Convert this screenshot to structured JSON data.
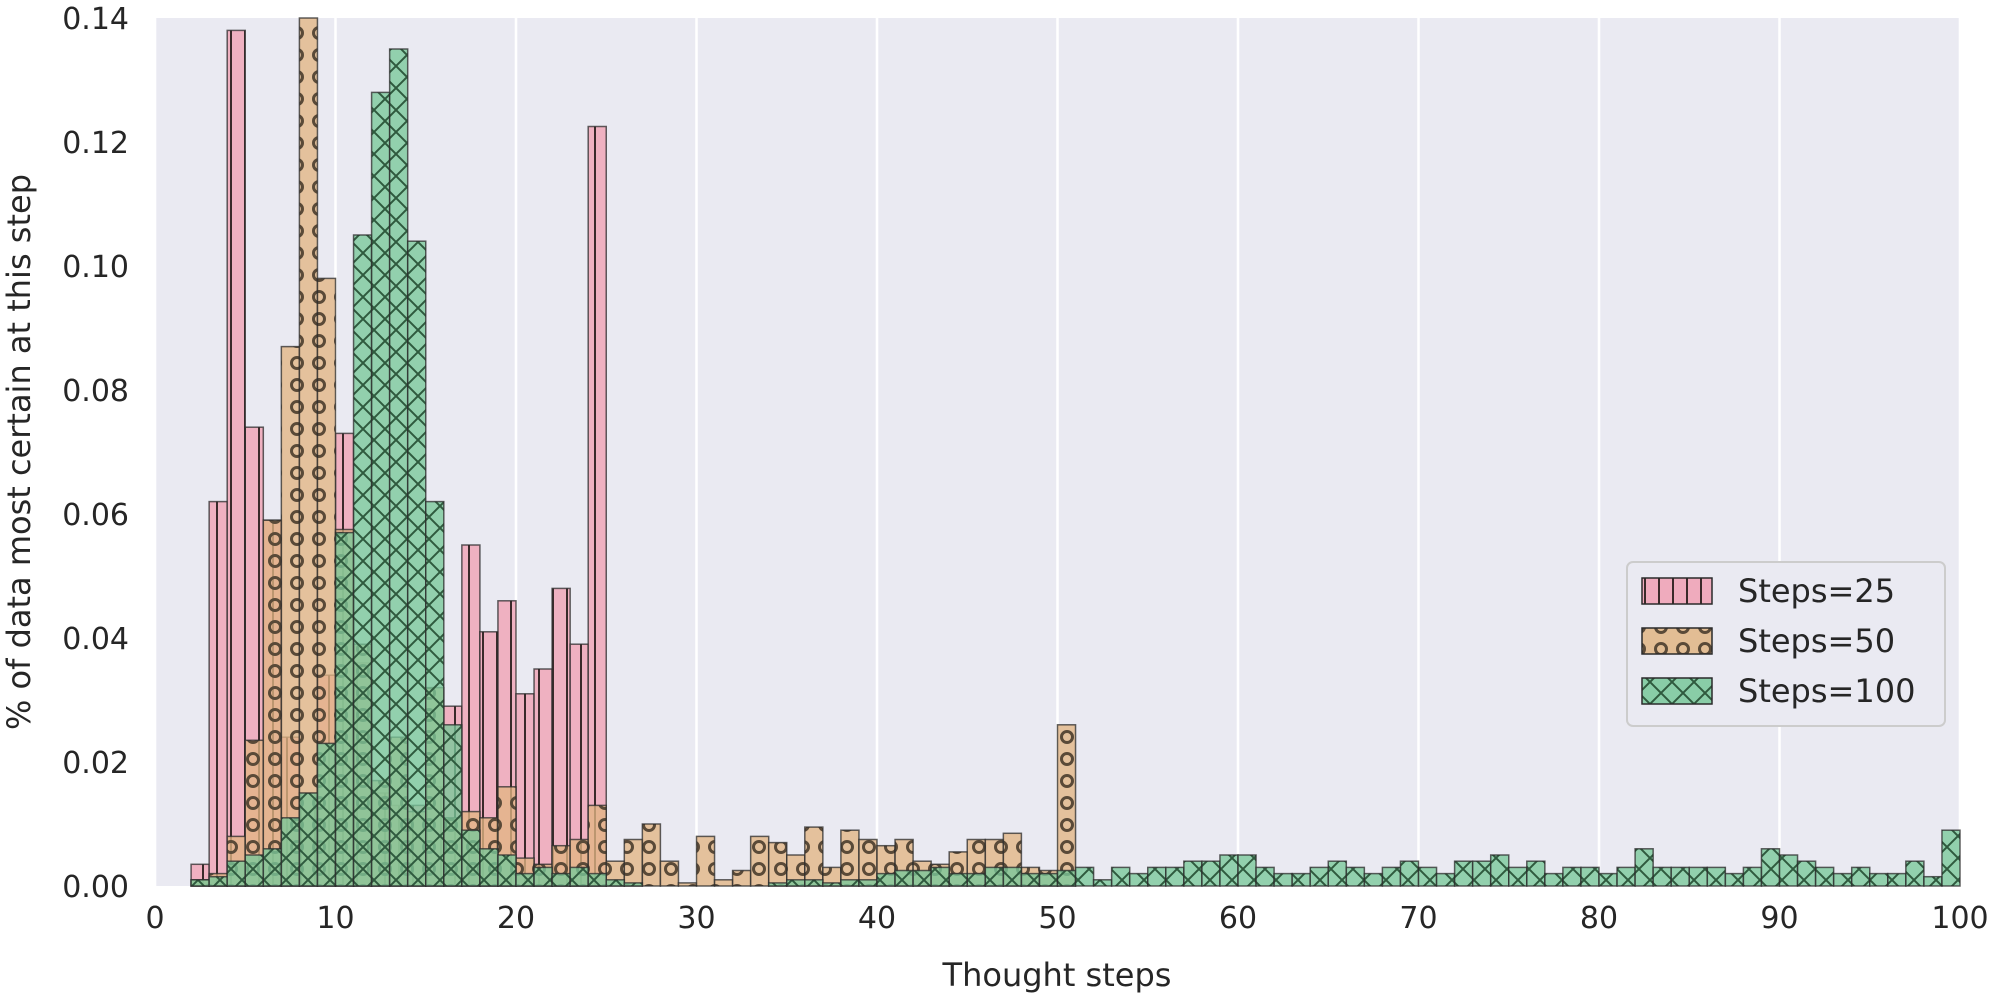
{
  "chart_data": {
    "type": "bar",
    "xlabel": "Thought steps",
    "ylabel": "% of data most certain at this step",
    "xlim": [
      0,
      100
    ],
    "ylim": [
      0,
      0.14
    ],
    "xticks": [
      "0",
      "10",
      "20",
      "30",
      "40",
      "50",
      "60",
      "70",
      "80",
      "90",
      "100"
    ],
    "yticks": [
      "0.00",
      "0.02",
      "0.04",
      "0.06",
      "0.08",
      "0.10",
      "0.12",
      "0.14"
    ],
    "grid": true,
    "legend_position": "center-right",
    "background": "#eaeaf2",
    "series": [
      {
        "name": "Steps=25",
        "color": "#f0a0b4",
        "hatch": "vertical",
        "bin_width": 1,
        "x": [
          2,
          3,
          4,
          5,
          6,
          7,
          8,
          9,
          10,
          11,
          12,
          13,
          14,
          15,
          16,
          17,
          18,
          19,
          20,
          21,
          22,
          23,
          24,
          25
        ],
        "values": [
          0.0035,
          0.062,
          0.138,
          0.074,
          0.059,
          0.024,
          0.015,
          0.034,
          0.073,
          0.036,
          0.015,
          0.013,
          0.013,
          0.016,
          0.029,
          0.055,
          0.041,
          0.046,
          0.031,
          0.035,
          0.048,
          0.039,
          0.1225,
          0
        ]
      },
      {
        "name": "Steps=50",
        "color": "#e1b584",
        "hatch": "circles",
        "bin_width": 1,
        "x": [
          2,
          3,
          4,
          5,
          6,
          7,
          8,
          9,
          10,
          11,
          12,
          13,
          14,
          15,
          16,
          17,
          18,
          19,
          20,
          21,
          22,
          23,
          24,
          25,
          26,
          27,
          28,
          29,
          30,
          31,
          32,
          33,
          34,
          35,
          36,
          37,
          38,
          39,
          40,
          41,
          42,
          43,
          44,
          45,
          46,
          47,
          48,
          49,
          50
        ],
        "values": [
          0.001,
          0.002,
          0.008,
          0.0235,
          0.059,
          0.087,
          0.14,
          0.098,
          0.0575,
          0.039,
          0.017,
          0.024,
          0.012,
          0.032,
          0.011,
          0.012,
          0.011,
          0.016,
          0.0045,
          0.0035,
          0.0065,
          0.0075,
          0.013,
          0.004,
          0.0075,
          0.01,
          0.004,
          0.0005,
          0.008,
          0.001,
          0.0025,
          0.008,
          0.007,
          0.005,
          0.0095,
          0.003,
          0.009,
          0.0075,
          0.0065,
          0.0075,
          0.004,
          0.0035,
          0.0055,
          0.0075,
          0.0075,
          0.0085,
          0.003,
          0.0025,
          0.026
        ]
      },
      {
        "name": "Steps=100",
        "color": "#78c89a",
        "hatch": "cross",
        "bin_width": 1,
        "x": [
          2,
          3,
          4,
          5,
          6,
          7,
          8,
          9,
          10,
          11,
          12,
          13,
          14,
          15,
          16,
          17,
          18,
          19,
          20,
          21,
          22,
          23,
          24,
          25,
          26,
          27,
          28,
          29,
          30,
          31,
          32,
          33,
          34,
          35,
          36,
          37,
          38,
          39,
          40,
          41,
          42,
          43,
          44,
          45,
          46,
          47,
          48,
          49,
          50,
          51,
          52,
          53,
          54,
          55,
          56,
          57,
          58,
          59,
          60,
          61,
          62,
          63,
          64,
          65,
          66,
          67,
          68,
          69,
          70,
          71,
          72,
          73,
          74,
          75,
          76,
          77,
          78,
          79,
          80,
          81,
          82,
          83,
          84,
          85,
          86,
          87,
          88,
          89,
          90,
          91,
          92,
          93,
          94,
          95,
          96,
          97,
          98,
          99
        ],
        "values": [
          0.001,
          0.0015,
          0.004,
          0.005,
          0.006,
          0.011,
          0.015,
          0.023,
          0.057,
          0.105,
          0.128,
          0.135,
          0.104,
          0.062,
          0.026,
          0.009,
          0.006,
          0.005,
          0.002,
          0.003,
          0.002,
          0.003,
          0.002,
          0.001,
          0.0005,
          0,
          0,
          0,
          0,
          0,
          0,
          0,
          0.0005,
          0.001,
          0.001,
          0.0005,
          0.001,
          0.001,
          0.002,
          0.0025,
          0.0025,
          0.003,
          0.002,
          0.002,
          0.003,
          0.003,
          0.002,
          0.002,
          0.0025,
          0.003,
          0.001,
          0.003,
          0.002,
          0.003,
          0.003,
          0.004,
          0.004,
          0.005,
          0.005,
          0.003,
          0.002,
          0.002,
          0.003,
          0.004,
          0.003,
          0.002,
          0.003,
          0.004,
          0.003,
          0.002,
          0.004,
          0.004,
          0.005,
          0.003,
          0.004,
          0.002,
          0.003,
          0.003,
          0.002,
          0.003,
          0.006,
          0.003,
          0.003,
          0.003,
          0.003,
          0.002,
          0.003,
          0.006,
          0.005,
          0.004,
          0.003,
          0.002,
          0.003,
          0.002,
          0.002,
          0.004,
          0.0015,
          0.009
        ]
      }
    ]
  }
}
